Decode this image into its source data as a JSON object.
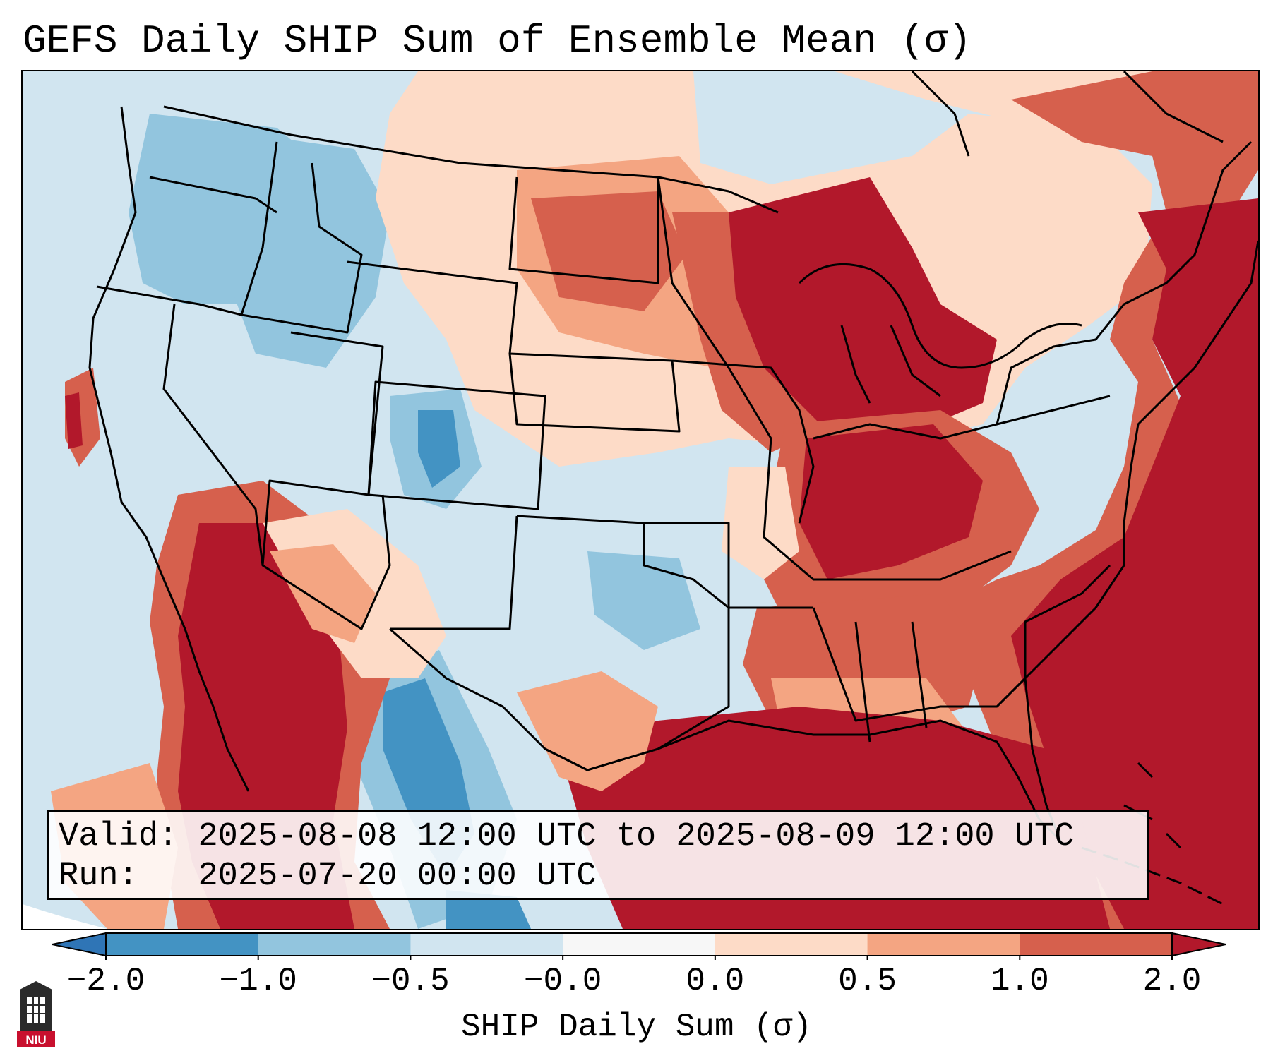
{
  "title": "GEFS Daily SHIP Sum of Ensemble Mean (σ)",
  "info": {
    "valid_label": "Valid:",
    "valid_value": "2025-08-08 12:00 UTC to 2025-08-09 12:00 UTC",
    "run_label": "Run:",
    "run_value": "2025-07-20 00:00 UTC"
  },
  "colorbar": {
    "label": "SHIP Daily Sum (σ)",
    "ticks": [
      "−2.0",
      "−1.0",
      "−0.5",
      "−0.0",
      "0.0",
      "0.5",
      "1.0",
      "2.0"
    ],
    "colors": [
      "#2f75b6",
      "#4393c3",
      "#92c5de",
      "#d1e5f0",
      "#f7f7f7",
      "#fddbc7",
      "#f4a582",
      "#d6604d",
      "#b2182b"
    ]
  },
  "map": {
    "ocean_color": "#d1e5f0",
    "land_colors": {
      "strong_neg": "#4393c3",
      "neg": "#92c5de",
      "weak_neg": "#d1e5f0",
      "weak_pos": "#fddbc7",
      "pos": "#f4a582",
      "mid_pos": "#d6604d",
      "strong_pos": "#b2182b"
    }
  },
  "logo": {
    "text": "NIU"
  }
}
